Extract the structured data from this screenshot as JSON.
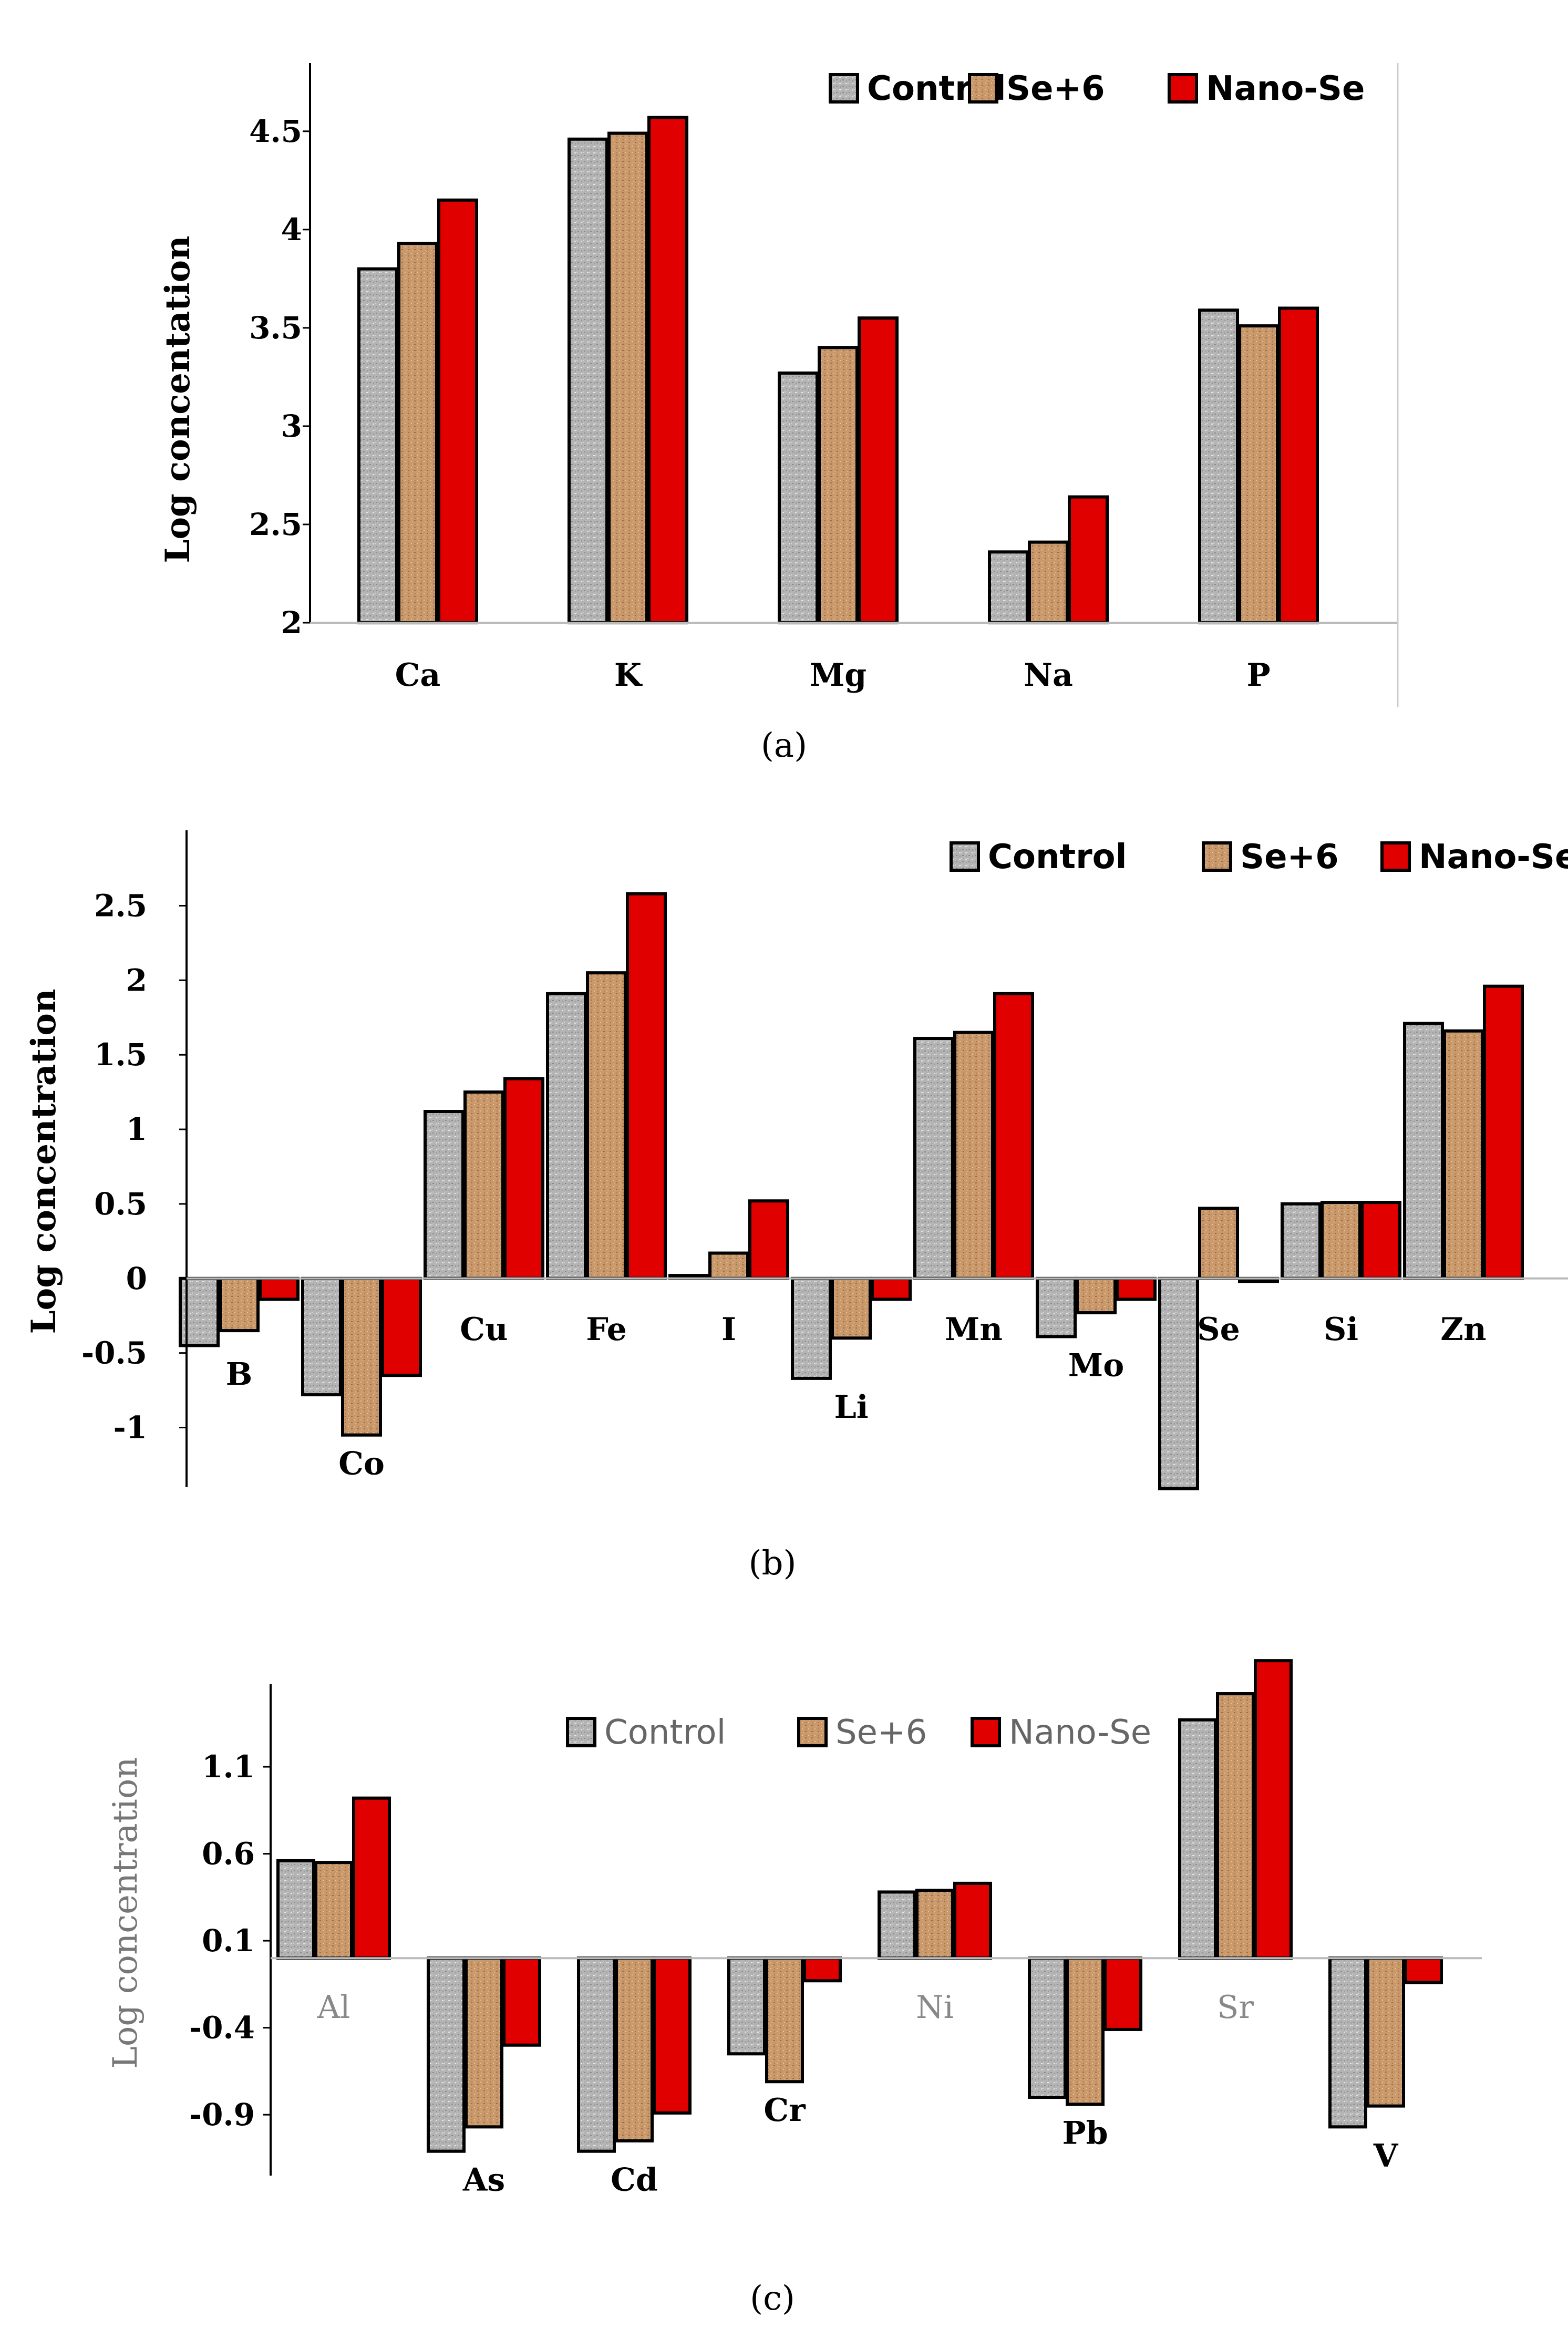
{
  "colors": {
    "control": "#b9b9b9",
    "se6": "#c99a6e",
    "nano": "#e00000"
  },
  "chart_data": [
    {
      "type": "bar",
      "panel_label": "(a)",
      "ylabel": "Log concentation",
      "xlabel": "",
      "ylim": [
        2,
        4.7
      ],
      "yticks": [
        2,
        2.5,
        3,
        3.5,
        4,
        4.5
      ],
      "ytick_labels": [
        "2",
        "2.5",
        "3",
        "3.5",
        "4",
        "4.5"
      ],
      "legend": [
        "Control",
        "Se+6",
        "Nano-Se"
      ],
      "legend_position": "top-right",
      "categories": [
        "Ca",
        "K",
        "Mg",
        "Na",
        "P"
      ],
      "series": [
        {
          "name": "Control",
          "values": [
            3.8,
            4.46,
            3.27,
            2.36,
            3.59
          ]
        },
        {
          "name": "Se+6",
          "values": [
            3.93,
            4.49,
            3.4,
            2.41,
            3.51
          ]
        },
        {
          "name": "Nano-Se",
          "values": [
            4.15,
            4.57,
            3.55,
            2.64,
            3.6
          ]
        }
      ]
    },
    {
      "type": "bar",
      "panel_label": "(b)",
      "ylabel": "Log concentration",
      "xlabel": "",
      "ylim": [
        -1.4,
        2.9
      ],
      "yticks": [
        -1,
        -0.5,
        0,
        0.5,
        1,
        1.5,
        2,
        2.5
      ],
      "ytick_labels": [
        "-1",
        "-0.5",
        "0",
        "0.5",
        "1",
        "1.5",
        "2",
        "2.5"
      ],
      "legend": [
        "Control",
        "Se+6",
        "Nano-Se"
      ],
      "legend_position": "top-right",
      "categories": [
        "B",
        "Co",
        "Cu",
        "Fe",
        "I",
        "Li",
        "Mn",
        "Mo",
        "Se",
        "Si",
        "Zn"
      ],
      "series": [
        {
          "name": "Control",
          "values": [
            -0.45,
            -0.78,
            1.12,
            1.91,
            0.02,
            -0.67,
            1.61,
            -0.39,
            -1.41,
            0.5,
            1.71
          ]
        },
        {
          "name": "Se+6",
          "values": [
            -0.35,
            -1.05,
            1.25,
            2.05,
            0.17,
            -0.4,
            1.65,
            -0.23,
            0.47,
            0.51,
            1.66
          ]
        },
        {
          "name": "Nano-Se",
          "values": [
            -0.14,
            -0.65,
            1.34,
            2.58,
            0.52,
            -0.14,
            1.91,
            -0.14,
            -0.02,
            0.51,
            1.96
          ]
        }
      ]
    },
    {
      "type": "bar",
      "panel_label": "(c)",
      "ylabel": "Log concentration",
      "xlabel": "",
      "ylim": [
        -1.25,
        1.65
      ],
      "yticks": [
        -0.9,
        -0.4,
        0.1,
        0.6,
        1.1
      ],
      "ytick_labels": [
        "-0.9",
        "-0.4",
        "0.1",
        "0.6",
        "1.1"
      ],
      "legend": [
        "Control",
        "Se+6",
        "Nano-Se"
      ],
      "legend_position": "top-center",
      "categories": [
        "Al",
        "As",
        "Cd",
        "Cr",
        "Ni",
        "Pb",
        "Sr",
        "V"
      ],
      "series": [
        {
          "name": "Control",
          "values": [
            0.56,
            -1.11,
            -1.11,
            -0.55,
            0.38,
            -0.8,
            1.37,
            -0.97
          ]
        },
        {
          "name": "Se+6",
          "values": [
            0.55,
            -0.97,
            -1.05,
            -0.71,
            0.39,
            -0.84,
            1.52,
            -0.85
          ]
        },
        {
          "name": "Nano-Se",
          "values": [
            0.92,
            -0.5,
            -0.89,
            -0.13,
            0.43,
            -0.41,
            1.71,
            -0.14
          ]
        }
      ]
    }
  ]
}
